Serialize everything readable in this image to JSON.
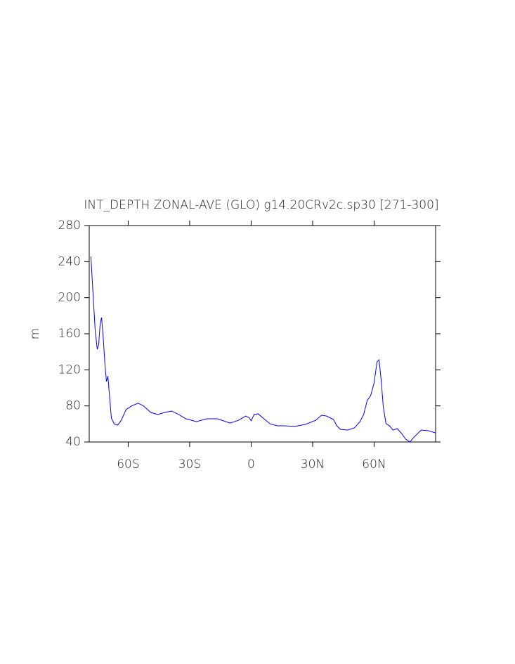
{
  "chart_data": {
    "type": "line",
    "title": "INT_DEPTH ZONAL-AVE (GLO) g14.20CRv2c.sp30 [271-300]",
    "y_label": "m",
    "xlim": [
      -79,
      90
    ],
    "ylim": [
      40,
      280
    ],
    "xticks": [
      {
        "value": -60,
        "label": "60S"
      },
      {
        "value": -30,
        "label": "30S"
      },
      0,
      {
        "value": 30,
        "label": "30N"
      },
      {
        "value": 60,
        "label": "60N"
      }
    ],
    "yticks": [
      40,
      80,
      120,
      160,
      200,
      240,
      280
    ],
    "grid": false,
    "series": [
      {
        "color": "#0000ff",
        "x": [
          -78.2,
          -77.1,
          -76.1,
          -75.1,
          -74.4,
          -73.7,
          -73,
          -72.3,
          -71.3,
          -70.6,
          -69.9,
          -69.2,
          -68.2,
          -66.8,
          -65.1,
          -63.4,
          -61,
          -58.3,
          -55.2,
          -52.5,
          -49,
          -45.6,
          -42.2,
          -38.8,
          -35.3,
          -31.9,
          -26.7,
          -21.6,
          -16.5,
          -10.3,
          -6.2,
          -2.7,
          -1,
          0,
          1.4,
          3.4,
          5.8,
          9.3,
          12.7,
          16.1,
          21.3,
          26.4,
          31.5,
          34.3,
          36.7,
          40.1,
          41.8,
          43.5,
          47,
          50.4,
          53.1,
          54.9,
          56.6,
          58.3,
          60,
          61.4,
          62.4,
          63.4,
          64.5,
          65.8,
          67.5,
          69.2,
          71.3,
          73.4,
          75.4,
          77.5,
          79.5,
          83,
          86.4,
          89.8
        ],
        "values": [
          245.7,
          202.9,
          163.9,
          142.9,
          148,
          170,
          178,
          160,
          125,
          107,
          113,
          94,
          66.5,
          60,
          58.7,
          64,
          76,
          80,
          83,
          80,
          72.7,
          70.4,
          72.7,
          74.3,
          70.4,
          65.7,
          62.6,
          65.7,
          65.7,
          61,
          64,
          68.8,
          67,
          63.4,
          70.4,
          71.2,
          66.5,
          60,
          57.9,
          57.9,
          57.2,
          59.5,
          64,
          69.6,
          68.8,
          65,
          57.9,
          54,
          53.2,
          55.6,
          62.6,
          70.4,
          86,
          91.4,
          105.5,
          128.8,
          131.2,
          109.4,
          78.2,
          60.3,
          57.9,
          53.2,
          54.8,
          49.4,
          43.1,
          40,
          45.5,
          53.2,
          52.5,
          50.1
        ]
      }
    ]
  }
}
